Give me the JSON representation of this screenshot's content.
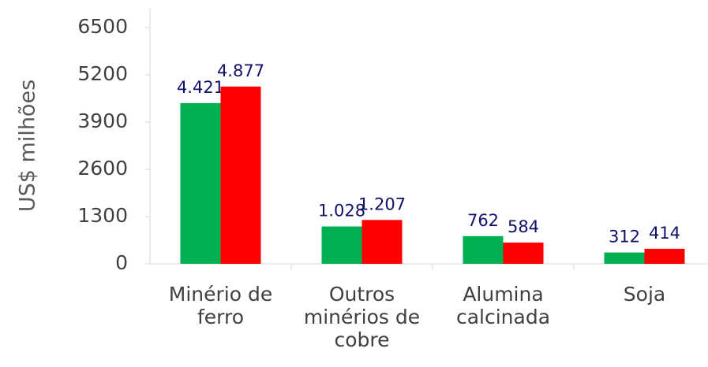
{
  "chart_data": {
    "type": "bar",
    "y_label": "US$ milhões",
    "categories": [
      "Minério de ferro",
      "Outros minérios de cobre",
      "Alumina calcinada",
      "Soja"
    ],
    "series": [
      {
        "color": "#00b050",
        "values": [
          4421,
          1028,
          762,
          312
        ],
        "value_labels": [
          "4.421",
          "1.028",
          "762",
          "312"
        ]
      },
      {
        "color": "#ff0000",
        "values": [
          4877,
          1207,
          584,
          414
        ],
        "value_labels": [
          "4.877",
          "1.207",
          "584",
          "414"
        ]
      }
    ],
    "ylim": [
      0,
      6500
    ],
    "yticks": [
      0,
      1300,
      2600,
      3900,
      5200,
      6500
    ],
    "grid": false
  }
}
